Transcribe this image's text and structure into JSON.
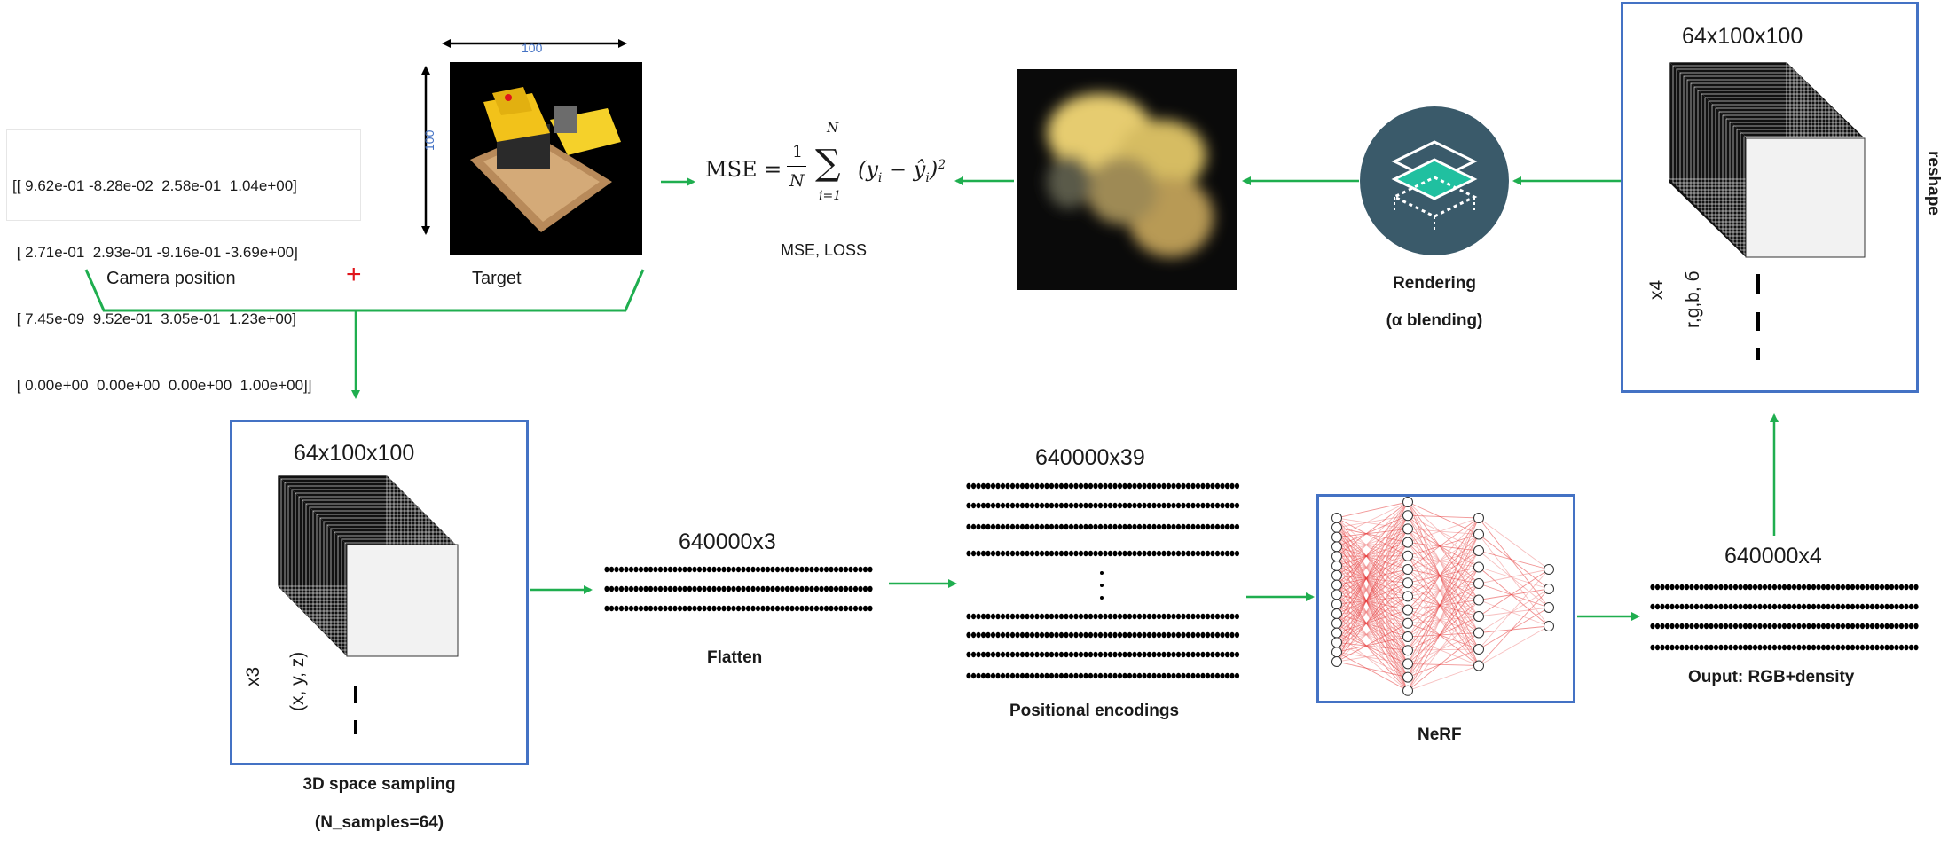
{
  "camera": {
    "matrix_rows": [
      "[[ 9.62e-01 -8.28e-02  2.58e-01  1.04e+00]",
      " [ 2.71e-01  2.93e-01 -9.16e-01 -3.69e+00]",
      " [ 7.45e-09  9.52e-01  3.05e-01  1.23e+00]",
      " [ 0.00e+00  0.00e+00  0.00e+00  1.00e+00]]"
    ],
    "label": "Camera position",
    "plus": "+"
  },
  "target": {
    "label": "Target",
    "width_label": "100",
    "height_label": "100"
  },
  "loss": {
    "label": "MSE, LOSS",
    "formula_lhs": "MSE",
    "formula_frac_num": "1",
    "formula_frac_den": "N",
    "sum_top": "N",
    "sum_bottom": "i=1",
    "sum_term": "(y",
    "sub_i": "i",
    "minus": "−",
    "yhat": "ŷ",
    "sq": "2"
  },
  "rendering": {
    "label_line1": "Rendering",
    "label_line2": "(α blending)"
  },
  "reshape_block": {
    "dims": "64x100x100",
    "multiplier": "x4",
    "channels": "r,g,b, б",
    "reshape_label": "reshape"
  },
  "sampling_block": {
    "dims": "64x100x100",
    "multiplier": "x3",
    "coords": "(x, y, z)",
    "label_line1": "3D space sampling",
    "label_line2": "(N_samples=64)"
  },
  "flatten": {
    "dims": "640000x3",
    "label": "Flatten"
  },
  "encodings": {
    "dims": "640000x39",
    "label": "Positional encodings"
  },
  "nerf": {
    "label": "NeRF"
  },
  "output": {
    "dims": "640000x4",
    "label": "Ouput: RGB+density"
  },
  "colors": {
    "arrow": "#1fae4f",
    "box_border": "#4472c4",
    "render_circle": "#3a5a6a",
    "render_accent": "#20c0a0",
    "plus": "#e0151b"
  }
}
